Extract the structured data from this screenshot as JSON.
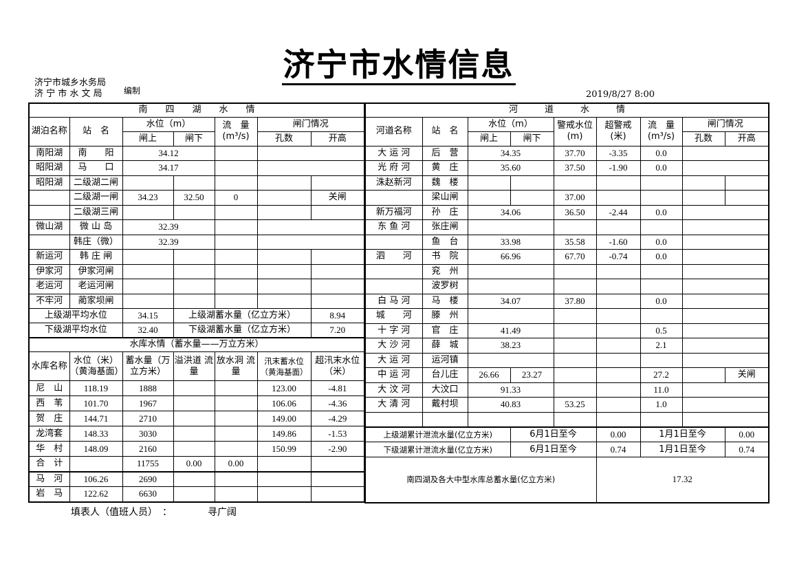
{
  "title": "济宁市水情信息",
  "org_lines": [
    "济宁市城乡水务局",
    "济 宁 市 水 文 局"
  ],
  "compiled_label": "编制",
  "datetime": "2019/8/27 8:00",
  "nansi": {
    "title": "南　　四　　湖　　水　　情",
    "headers": {
      "lake": "湖泊名称",
      "station": "站　名",
      "level": "水位（m）",
      "flow": "流　量",
      "flow_unit": "(m³/s)",
      "gate": "闸门情况",
      "up": "闸上",
      "down": "闸下",
      "holes": "孔数",
      "open": "开高"
    },
    "rows": [
      [
        "南阳湖",
        "南　　阳",
        "34.12",
        null,
        "",
        "",
        null
      ],
      [
        "昭阳湖",
        "马　　口",
        "34.17",
        null,
        "",
        "",
        null
      ],
      [
        "昭阳湖",
        "二级湖二闸",
        "",
        "",
        "",
        "",
        ""
      ],
      [
        "",
        "二级湖一闸",
        "34.23",
        "32.50",
        "0",
        "",
        "关闸"
      ],
      [
        "",
        "二级湖三闸",
        "",
        "",
        "",
        "",
        ""
      ],
      [
        "微山湖",
        "微 山 岛",
        "32.39",
        null,
        "",
        "",
        null
      ],
      [
        "",
        "韩庄（微）",
        "32.39",
        null,
        "",
        "",
        null
      ],
      [
        "新运河",
        "韩 庄 闸",
        "",
        "",
        "",
        "",
        ""
      ],
      [
        "伊家河",
        "伊家河闸",
        "",
        "",
        "",
        "",
        ""
      ],
      [
        "老运河",
        "老运河闸",
        "",
        "",
        "",
        "",
        ""
      ],
      [
        "不牢河",
        "蔺家坝闸",
        "",
        "",
        "",
        "",
        ""
      ]
    ],
    "upper_avg_label": "上级湖平均水位",
    "upper_avg": "34.15",
    "upper_storage_label": "上级湖蓄水量（亿立方米）",
    "upper_storage": "8.94",
    "lower_avg_label": "下级湖平均水位",
    "lower_avg": "32.40",
    "lower_storage_label": "下级湖蓄水量（亿立方米）",
    "lower_storage": "7.20"
  },
  "reservoir": {
    "title": "水库水情（蓄水量——万立方米）",
    "headers": [
      "水库名称",
      "水位（米）（黄海基面）",
      "蓄水量（万立方米）",
      "溢洪道 流　量",
      "放水洞 流　量",
      "汛末蓄水位（黄海基面）",
      "超汛末水位（米）"
    ],
    "rows": [
      [
        "尼　山",
        "118.19",
        "1888",
        "",
        "",
        "123.00",
        "-4.81"
      ],
      [
        "西　苇",
        "101.70",
        "1967",
        "",
        "",
        "106.06",
        "-4.36"
      ],
      [
        "贺　庄",
        "144.71",
        "2710",
        "",
        "",
        "149.00",
        "-4.29"
      ],
      [
        "龙湾套",
        "148.33",
        "3030",
        "",
        "",
        "149.86",
        "-1.53"
      ],
      [
        "华　村",
        "148.09",
        "2160",
        "",
        "",
        "150.99",
        "-2.90"
      ],
      [
        "合　计",
        "",
        "11755",
        "0.00",
        "0.00",
        "",
        ""
      ]
    ],
    "extra_rows": [
      [
        "马　河",
        "106.26",
        "2690",
        "",
        "",
        "",
        ""
      ],
      [
        "岩　马",
        "122.62",
        "6630",
        "",
        "",
        "",
        ""
      ]
    ]
  },
  "river": {
    "title": "河　　　道　　　水　　　情",
    "headers": {
      "river": "河道名称",
      "station": "站　名",
      "level": "水位（m）",
      "warn": "警戒水位",
      "warn_unit": "(m)",
      "over": "超警戒",
      "over_unit": "(米)",
      "flow": "流　量",
      "flow_unit": "(m³/s)",
      "gate": "闸门情况",
      "up": "闸上",
      "down": "闸下",
      "holes": "孔数",
      "open": "开高"
    },
    "rows": [
      [
        "大 运 河",
        "后　营",
        "34.35",
        null,
        "37.70",
        "-3.35",
        "0.0",
        "",
        null
      ],
      [
        "光 府 河",
        "黄　庄",
        "35.60",
        null,
        "37.50",
        "-1.90",
        "0.0",
        "",
        null
      ],
      [
        "洙赵新河",
        "魏　楼",
        "",
        "",
        "",
        "",
        "",
        "",
        ""
      ],
      [
        "",
        "梁山闸",
        "",
        "",
        "37.00",
        "",
        "",
        "",
        ""
      ],
      [
        "新万福河",
        "孙　庄",
        "34.06",
        null,
        "36.50",
        "-2.44",
        "0.0",
        "",
        null
      ],
      [
        "东 鱼 河",
        "张庄闸",
        "",
        null,
        "",
        "",
        "",
        "",
        null
      ],
      [
        "",
        "鱼　台",
        "33.98",
        null,
        "35.58",
        "-1.60",
        "0.0",
        "",
        null
      ],
      [
        "泗　　河",
        "书　院",
        "66.96",
        null,
        "67.70",
        "-0.74",
        "0.0",
        "",
        null
      ],
      [
        "",
        "兖　州",
        "",
        null,
        "",
        "",
        "",
        "",
        null
      ],
      [
        "",
        "波罗树",
        "",
        null,
        "",
        "",
        "",
        "",
        null
      ],
      [
        "白 马 河",
        "马　楼",
        "34.07",
        null,
        "37.80",
        "",
        "0.0",
        "",
        null
      ],
      [
        "城　　河",
        "滕　州",
        "",
        null,
        "",
        "",
        "",
        "",
        null
      ],
      [
        "十 字 河",
        "官　庄",
        "41.49",
        null,
        "",
        "",
        "0.5",
        "",
        null
      ],
      [
        "大 沙 河",
        "薛　城",
        "38.23",
        null,
        "",
        "",
        "2.1",
        "",
        null
      ],
      [
        "大 运 河",
        "运河镇",
        "",
        null,
        "",
        "",
        "",
        "",
        null
      ],
      [
        "中 运 河",
        "台儿庄",
        "26.66",
        "23.27",
        "",
        "",
        "27.2",
        "",
        "关闸"
      ],
      [
        "大 汶 河",
        "大汶口",
        "91.33",
        null,
        "",
        "",
        "11.0",
        "",
        null
      ],
      [
        "大 清 河",
        "戴村坝",
        "40.83",
        null,
        "53.25",
        "",
        "1.0",
        "",
        null
      ],
      [
        "",
        "",
        "",
        null,
        "",
        "",
        "",
        "",
        null
      ]
    ],
    "summary": [
      [
        "上级湖累计泄流水量(亿立方米)",
        "6月1日至今",
        "0.00",
        "1月1日至今",
        "0.00"
      ],
      [
        "下级湖累计泄流水量(亿立方米)",
        "6月1日至今",
        "0.74",
        "1月1日至今",
        "0.74"
      ]
    ],
    "total_label": "南四湖及各大中型水库总蓄水量(亿立方米)",
    "total_value": "17.32"
  },
  "footer": {
    "label": "填表人（值班人员）　：",
    "name": "寻广阔"
  }
}
